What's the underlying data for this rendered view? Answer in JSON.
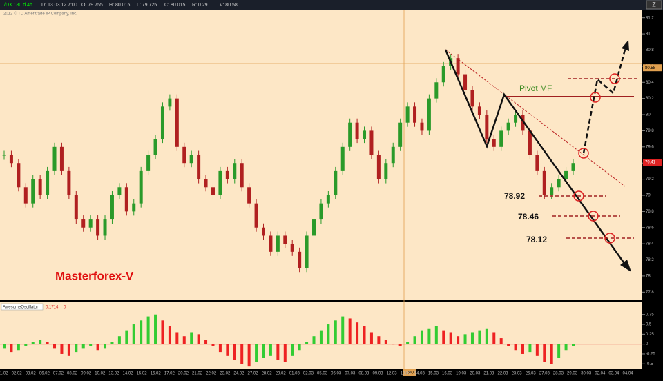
{
  "header": {
    "symbol": "/DX 180 d 4h",
    "fields": [
      "D: 13.03.12 7:00",
      "O: 79.755",
      "H: 80.015",
      "L: 79.725",
      "C: 80.015",
      "R: 0.29",
      "V: 80.58"
    ],
    "copyright": "2012 © TD Ameritrade IP Company, Inc."
  },
  "chart_data": {
    "type": "candlestick",
    "closes": [
      79.5,
      79.4,
      79.1,
      78.9,
      79.2,
      79.0,
      79.3,
      79.6,
      79.3,
      79.0,
      78.7,
      78.6,
      78.7,
      78.5,
      78.7,
      79.0,
      79.1,
      78.8,
      78.9,
      79.3,
      79.5,
      79.7,
      80.1,
      80.2,
      79.6,
      79.4,
      79.5,
      79.2,
      79.1,
      79.0,
      79.3,
      79.2,
      79.4,
      79.1,
      78.9,
      78.6,
      78.5,
      78.3,
      78.5,
      78.4,
      78.3,
      78.1,
      78.5,
      78.7,
      78.9,
      79.0,
      79.3,
      79.6,
      79.9,
      79.7,
      79.8,
      79.5,
      79.2,
      79.4,
      79.6,
      79.9,
      80.1,
      79.9,
      79.8,
      80.2,
      80.4,
      80.6,
      80.7,
      80.5,
      80.3,
      80.1,
      80.0,
      79.7,
      79.6,
      79.8,
      79.9,
      80.0,
      79.8,
      79.5,
      79.3,
      79.0,
      79.1,
      79.2,
      79.3,
      79.4
    ],
    "ylim": [
      77.7,
      81.3
    ],
    "yticks": [
      81.2,
      81,
      80.8,
      80.6,
      80.4,
      80.2,
      80,
      79.8,
      79.6,
      79.4,
      79.2,
      79,
      78.8,
      78.6,
      78.4,
      78.2,
      78,
      77.8
    ],
    "price_tags": [
      80.58,
      79.41
    ],
    "annotations": {
      "pivot": "Pivot MF",
      "levels": [
        "78.92",
        "78.46",
        "78.12"
      ],
      "brand": "Masterforex-V"
    },
    "cursor_time": "7:00",
    "dates": [
      "01.02",
      "02.02",
      "03.02",
      "06.02",
      "07.02",
      "08.02",
      "09.02",
      "10.02",
      "13.02",
      "14.02",
      "15.02",
      "16.02",
      "17.02",
      "20.02",
      "21.02",
      "22.02",
      "23.02",
      "24.02",
      "27.02",
      "28.02",
      "29.02",
      "01.03",
      "02.03",
      "05.03",
      "06.03",
      "07.03",
      "08.03",
      "09.03",
      "12.03",
      "13.03",
      "14.03",
      "15.03",
      "16.03",
      "19.03",
      "20.03",
      "21.03",
      "22.03",
      "23.03",
      "26.03",
      "27.03",
      "28.03",
      "29.03",
      "30.03",
      "02.04",
      "03.04",
      "04.04"
    ],
    "oscillator": {
      "name": "AwesomeOscillator",
      "readout": [
        "0.1714",
        "0"
      ],
      "values": [
        -0.1,
        -0.2,
        -0.15,
        -0.05,
        0.05,
        0.1,
        0.05,
        -0.1,
        -0.25,
        -0.3,
        -0.2,
        -0.1,
        -0.05,
        -0.15,
        -0.1,
        0.05,
        0.2,
        0.35,
        0.5,
        0.6,
        0.7,
        0.75,
        0.6,
        0.45,
        0.3,
        0.2,
        0.3,
        0.25,
        0.1,
        -0.05,
        -0.2,
        -0.3,
        -0.4,
        -0.5,
        -0.55,
        -0.45,
        -0.35,
        -0.3,
        -0.4,
        -0.45,
        -0.3,
        -0.15,
        0.05,
        0.2,
        0.35,
        0.5,
        0.6,
        0.7,
        0.65,
        0.55,
        0.45,
        0.3,
        0.2,
        0.1,
        0.0,
        -0.05,
        0.05,
        0.2,
        0.35,
        0.4,
        0.45,
        0.35,
        0.3,
        0.2,
        0.25,
        0.3,
        0.35,
        0.4,
        0.3,
        0.15,
        -0.05,
        -0.15,
        -0.25,
        -0.2,
        -0.3,
        -0.45,
        -0.5,
        -0.35,
        -0.15,
        -0.05
      ],
      "ylim": [
        -0.6,
        0.85
      ],
      "yticks": [
        0.75,
        0.5,
        0.25,
        0,
        -0.25,
        -0.5
      ]
    }
  }
}
